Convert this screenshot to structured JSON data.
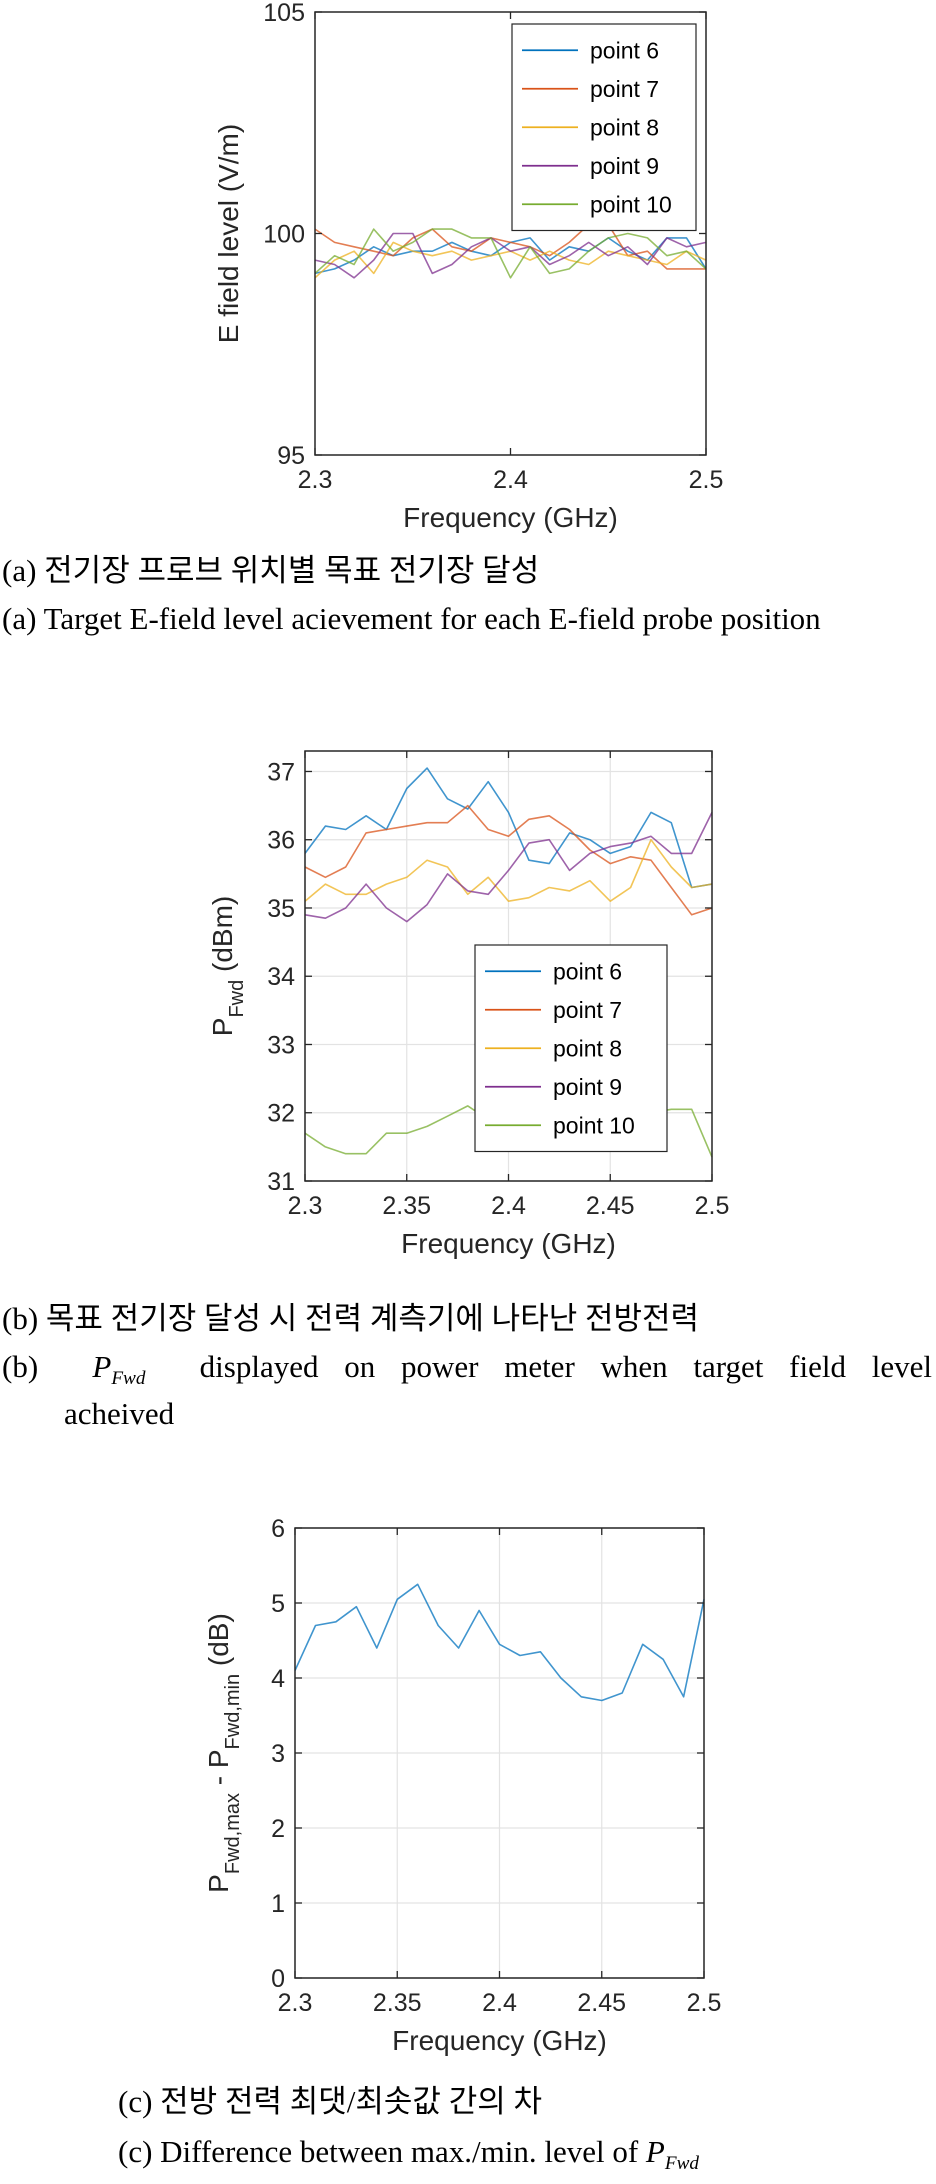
{
  "figures": [
    {
      "caption_ko": "(a) 전기장 프로브 위치별 목표 전기장 달성",
      "caption_en": "(a) Target E-field level acievement for each E-field probe position"
    },
    {
      "caption_ko": "(b) 목표 전기장 달성 시 전력 계측기에 나타난 전방전력",
      "caption_en_prefix": "(b)",
      "caption_en_symbol": "P",
      "caption_en_symbol_sub": "Fwd",
      "caption_en_text": "displayed on power meter when target field level",
      "caption_en_cont": "acheived"
    },
    {
      "caption_ko": "(c) 전방 전력 최댓/최솟값 간의 차",
      "caption_en_text": "(c) Difference between max./min. level of",
      "caption_en_symbol": "P",
      "caption_en_symbol_sub": "Fwd"
    }
  ],
  "chart_data": [
    {
      "type": "line",
      "title": "",
      "xlabel": "Frequency (GHz)",
      "ylabel": "E field level (V/m)",
      "xlim": [
        2.3,
        2.5
      ],
      "ylim": [
        95,
        105
      ],
      "xticks": [
        "2.3",
        "2.4",
        "2.5"
      ],
      "xtick_values": [
        2.3,
        2.4,
        2.5
      ],
      "yticks": [
        "95",
        "100",
        "105"
      ],
      "ytick_values": [
        95,
        100,
        105
      ],
      "grid": false,
      "legend_position": "top-right",
      "x": [
        2.3,
        2.31,
        2.32,
        2.33,
        2.34,
        2.35,
        2.36,
        2.37,
        2.38,
        2.39,
        2.4,
        2.41,
        2.42,
        2.43,
        2.44,
        2.45,
        2.46,
        2.47,
        2.48,
        2.49,
        2.5
      ],
      "series": [
        {
          "name": "point 6",
          "color": "#0072BD",
          "values": [
            99.1,
            99.2,
            99.4,
            99.7,
            99.5,
            99.6,
            99.6,
            99.8,
            99.6,
            99.5,
            99.8,
            99.9,
            99.4,
            99.7,
            99.6,
            99.9,
            99.6,
            99.4,
            99.9,
            99.9,
            99.2
          ]
        },
        {
          "name": "point 7",
          "color": "#D95319",
          "values": [
            100.1,
            99.8,
            99.7,
            99.6,
            99.5,
            99.9,
            100.1,
            99.7,
            99.6,
            99.9,
            99.8,
            99.7,
            99.5,
            99.8,
            100.2,
            100.2,
            99.5,
            99.6,
            99.2,
            99.2,
            99.2
          ]
        },
        {
          "name": "point 8",
          "color": "#EDB120",
          "values": [
            99.0,
            99.4,
            99.6,
            99.1,
            99.8,
            99.6,
            99.5,
            99.6,
            99.4,
            99.5,
            99.6,
            99.4,
            99.6,
            99.4,
            99.3,
            99.6,
            99.5,
            99.4,
            99.3,
            99.6,
            99.4
          ]
        },
        {
          "name": "point 9",
          "color": "#7E2F8E",
          "values": [
            99.4,
            99.3,
            99.0,
            99.4,
            100.0,
            100.0,
            99.1,
            99.3,
            99.7,
            99.9,
            99.6,
            99.7,
            99.3,
            99.5,
            99.8,
            99.5,
            99.7,
            99.3,
            99.9,
            99.7,
            99.8
          ]
        },
        {
          "name": "point 10",
          "color": "#77AC30",
          "values": [
            99.1,
            99.5,
            99.3,
            100.1,
            99.6,
            99.8,
            100.1,
            100.1,
            99.9,
            99.9,
            99.0,
            99.7,
            99.1,
            99.2,
            99.6,
            99.9,
            100.0,
            99.9,
            99.5,
            99.6,
            99.2
          ]
        }
      ]
    },
    {
      "type": "line",
      "title": "",
      "xlabel": "Frequency (GHz)",
      "ylabel_main": "P",
      "ylabel_sub": "Fwd",
      "ylabel_unit": "(dBm)",
      "xlim": [
        2.3,
        2.5
      ],
      "ylim": [
        31,
        37.3
      ],
      "xticks": [
        "2.3",
        "2.35",
        "2.4",
        "2.45",
        "2.5"
      ],
      "xtick_values": [
        2.3,
        2.35,
        2.4,
        2.45,
        2.5
      ],
      "yticks": [
        "31",
        "32",
        "33",
        "34",
        "35",
        "36",
        "37"
      ],
      "ytick_values": [
        31,
        32,
        33,
        34,
        35,
        36,
        37
      ],
      "grid": true,
      "legend_position": "center-right",
      "x": [
        2.3,
        2.31,
        2.32,
        2.33,
        2.34,
        2.35,
        2.36,
        2.37,
        2.38,
        2.39,
        2.4,
        2.41,
        2.42,
        2.43,
        2.44,
        2.45,
        2.46,
        2.47,
        2.48,
        2.49,
        2.5
      ],
      "series": [
        {
          "name": "point 6",
          "color": "#0072BD",
          "values": [
            35.8,
            36.2,
            36.15,
            36.35,
            36.15,
            36.75,
            37.05,
            36.6,
            36.45,
            36.85,
            36.4,
            35.7,
            35.65,
            36.1,
            36.0,
            35.8,
            35.9,
            36.4,
            36.25,
            35.3,
            35.35
          ]
        },
        {
          "name": "point 7",
          "color": "#D95319",
          "values": [
            35.6,
            35.45,
            35.6,
            36.1,
            36.15,
            36.2,
            36.25,
            36.25,
            36.5,
            36.15,
            36.05,
            36.3,
            36.35,
            36.15,
            35.85,
            35.65,
            35.75,
            35.7,
            35.3,
            34.9,
            35.0
          ]
        },
        {
          "name": "point 8",
          "color": "#EDB120",
          "values": [
            35.1,
            35.35,
            35.2,
            35.2,
            35.35,
            35.45,
            35.7,
            35.6,
            35.2,
            35.45,
            35.1,
            35.15,
            35.3,
            35.25,
            35.4,
            35.1,
            35.3,
            36.0,
            35.6,
            35.3,
            35.35
          ]
        },
        {
          "name": "point 9",
          "color": "#7E2F8E",
          "values": [
            34.9,
            34.85,
            35.0,
            35.35,
            35.0,
            34.8,
            35.05,
            35.5,
            35.25,
            35.2,
            35.55,
            35.95,
            36.0,
            35.55,
            35.8,
            35.9,
            35.95,
            36.05,
            35.8,
            35.8,
            36.4
          ]
        },
        {
          "name": "point 10",
          "color": "#77AC30",
          "values": [
            31.7,
            31.5,
            31.4,
            31.4,
            31.7,
            31.7,
            31.8,
            31.95,
            32.1,
            31.9,
            32.0,
            32.0,
            32.0,
            32.1,
            32.3,
            32.2,
            32.2,
            32.0,
            32.05,
            32.05,
            31.35
          ]
        }
      ]
    },
    {
      "type": "line",
      "title": "",
      "xlabel": "Frequency (GHz)",
      "ylabel_a": "P",
      "ylabel_a_sub": "Fwd,max",
      "ylabel_mid": " - P",
      "ylabel_b_sub": "Fwd,min",
      "ylabel_unit": "(dB)",
      "xlim": [
        2.3,
        2.5
      ],
      "ylim": [
        0,
        6
      ],
      "xticks": [
        "2.3",
        "2.35",
        "2.4",
        "2.45",
        "2.5"
      ],
      "xtick_values": [
        2.3,
        2.35,
        2.4,
        2.45,
        2.5
      ],
      "yticks": [
        "0",
        "1",
        "2",
        "3",
        "4",
        "5",
        "6"
      ],
      "ytick_values": [
        0,
        1,
        2,
        3,
        4,
        5,
        6
      ],
      "grid": true,
      "x": [
        2.3,
        2.31,
        2.32,
        2.33,
        2.34,
        2.35,
        2.36,
        2.37,
        2.38,
        2.39,
        2.4,
        2.41,
        2.42,
        2.43,
        2.44,
        2.45,
        2.46,
        2.47,
        2.48,
        2.49,
        2.5
      ],
      "series": [
        {
          "color": "#0072BD",
          "values": [
            4.1,
            4.7,
            4.75,
            4.95,
            4.4,
            5.05,
            5.25,
            4.7,
            4.4,
            4.9,
            4.45,
            4.3,
            4.35,
            4.0,
            3.75,
            3.7,
            3.8,
            4.45,
            4.25,
            3.75,
            5.05
          ]
        }
      ]
    }
  ]
}
